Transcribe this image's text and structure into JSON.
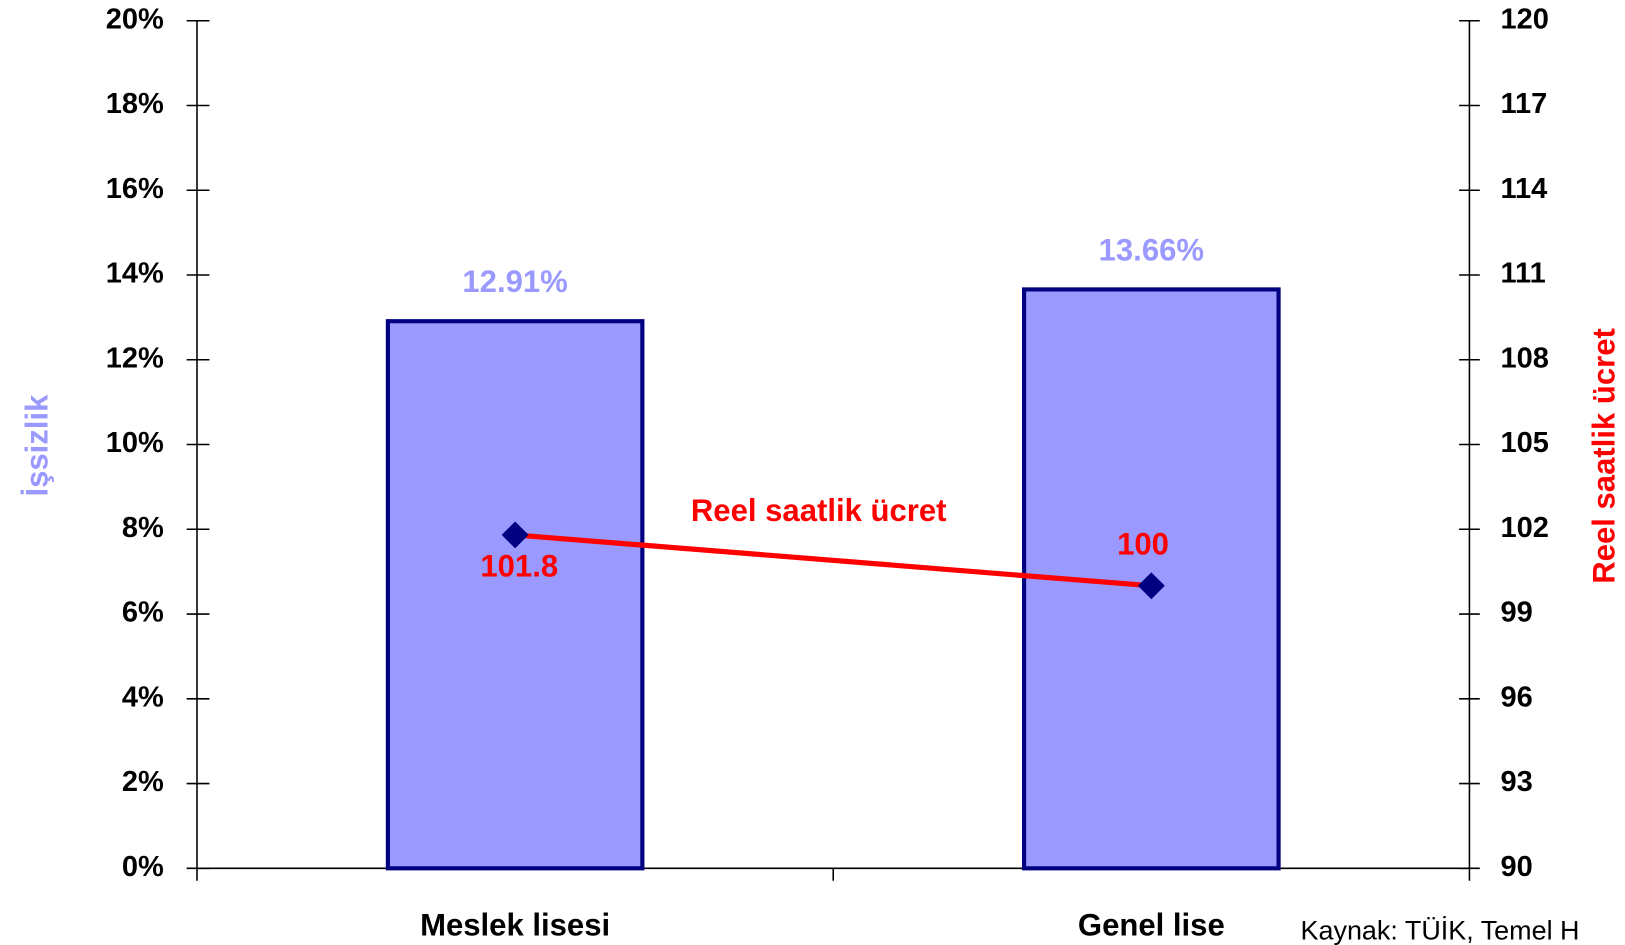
{
  "chart_data": {
    "type": "bar",
    "categories": [
      "Meslek lisesi",
      "Genel lise"
    ],
    "series": [
      {
        "type": "bar",
        "color": "#9999ff",
        "values": [
          12.91,
          13.66
        ],
        "value_labels": [
          "12.91%",
          "13.66%"
        ]
      },
      {
        "type": "line",
        "axis": "y2",
        "name": "Reel saatlik ücret",
        "color": "#ff0000",
        "marker_color": "#000080",
        "values": [
          101.8,
          100
        ]
      }
    ],
    "ylabel": "İşsizlik",
    "y2label": "Reel saatlik ücret",
    "ylim": [
      0,
      20
    ],
    "yticks": [
      {
        "value": 0,
        "label": "0%"
      },
      {
        "value": 2,
        "label": "2%"
      },
      {
        "value": 4,
        "label": "4%"
      },
      {
        "value": 6,
        "label": "6%"
      },
      {
        "value": 8,
        "label": "8%"
      },
      {
        "value": 10,
        "label": "10%"
      },
      {
        "value": 12,
        "label": "12%"
      },
      {
        "value": 14,
        "label": "14%"
      },
      {
        "value": 16,
        "label": "16%"
      },
      {
        "value": 18,
        "label": "18%"
      },
      {
        "value": 20,
        "label": "20%"
      }
    ],
    "y2lim": [
      90,
      120
    ],
    "y2ticks": [
      90,
      93,
      96,
      99,
      102,
      105,
      108,
      111,
      114,
      117,
      120
    ],
    "source": "Kaynak: TÜİK, Temel H"
  }
}
